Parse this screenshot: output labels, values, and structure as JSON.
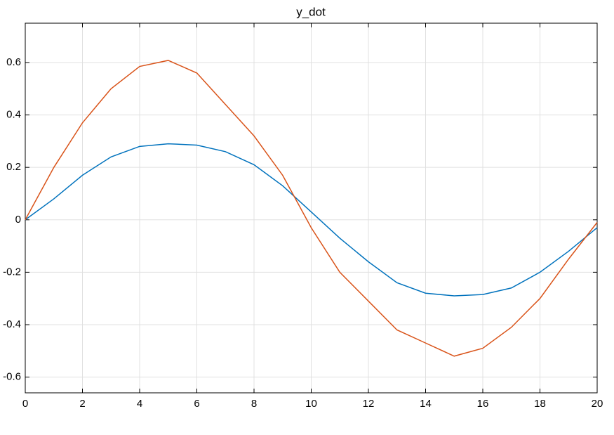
{
  "chart_data": {
    "type": "line",
    "title": "y_dot",
    "x": [
      0,
      1,
      2,
      3,
      4,
      5,
      6,
      7,
      8,
      9,
      10,
      11,
      12,
      13,
      14,
      15,
      16,
      17,
      18,
      19,
      20
    ],
    "series": [
      {
        "color": "#0072bd",
        "values": [
          0,
          0.08,
          0.17,
          0.24,
          0.28,
          0.29,
          0.285,
          0.26,
          0.21,
          0.13,
          0.03,
          -0.07,
          -0.16,
          -0.24,
          -0.28,
          -0.29,
          -0.285,
          -0.26,
          -0.2,
          -0.12,
          -0.03
        ]
      },
      {
        "color": "#d95319",
        "values": [
          0,
          0.2,
          0.37,
          0.5,
          0.585,
          0.608,
          0.56,
          0.44,
          0.32,
          0.17,
          -0.03,
          -0.2,
          -0.31,
          -0.42,
          -0.47,
          -0.52,
          -0.49,
          -0.41,
          -0.3,
          -0.15,
          -0.01
        ]
      }
    ],
    "xlim": [
      0,
      20
    ],
    "xticks": [
      0,
      2,
      4,
      6,
      8,
      10,
      12,
      14,
      16,
      18,
      20
    ],
    "ylim": [
      -0.66,
      0.75
    ],
    "yticks": [
      -0.6,
      -0.4,
      -0.2,
      0,
      0.2,
      0.4,
      0.6
    ],
    "grid": true
  }
}
